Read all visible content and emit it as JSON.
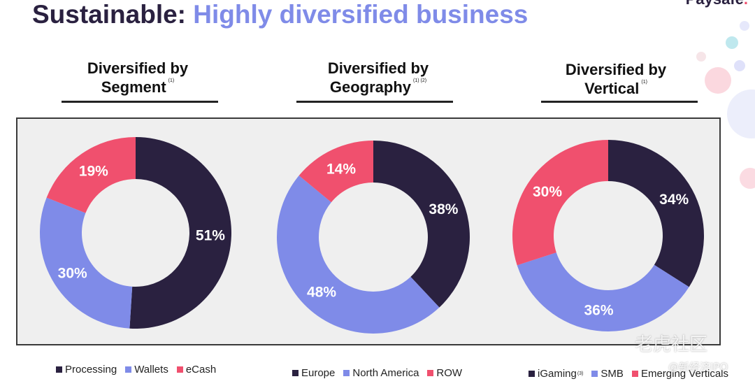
{
  "slide": {
    "title_prefix": "Sustainable:",
    "title_accent": "Highly diversified business",
    "brand": "Paysafe",
    "brand_dot": "."
  },
  "colors": {
    "navy": "#2a2140",
    "periwinkle": "#7f8be8",
    "pink": "#f0506e",
    "panel_bg": "#efefef"
  },
  "headings": [
    {
      "line1": "Diversified by",
      "line2": "Segment",
      "note": "(1)"
    },
    {
      "line1": "Diversified by",
      "line2": "Geography",
      "note": "(1) (2)"
    },
    {
      "line1": "Diversified by",
      "line2": "Vertical",
      "note": "(1)"
    }
  ],
  "chart_data": [
    {
      "type": "pie",
      "title": "Diversified by Segment",
      "categories": [
        "Processing",
        "Wallets",
        "eCash"
      ],
      "values": [
        51,
        30,
        19
      ],
      "labels": [
        "51%",
        "30%",
        "19%"
      ],
      "colors": [
        "#2a2140",
        "#7f8be8",
        "#f0506e"
      ],
      "legend_position": "bottom"
    },
    {
      "type": "pie",
      "title": "Diversified by Geography",
      "categories": [
        "Europe",
        "North America",
        "ROW"
      ],
      "values": [
        38,
        48,
        14
      ],
      "labels": [
        "38%",
        "48%",
        "14%"
      ],
      "colors": [
        "#2a2140",
        "#7f8be8",
        "#f0506e"
      ],
      "legend_position": "bottom"
    },
    {
      "type": "pie",
      "title": "Diversified by Vertical",
      "categories": [
        "iGaming",
        "SMB",
        "Emerging Verticals"
      ],
      "category_notes": [
        "(3)",
        "",
        ""
      ],
      "values": [
        34,
        36,
        30
      ],
      "labels": [
        "34%",
        "36%",
        "30%"
      ],
      "colors": [
        "#2a2140",
        "#7f8be8",
        "#f0506e"
      ],
      "legend_position": "bottom"
    }
  ],
  "watermarks": {
    "site": "老虎社区",
    "handle": "@新经济IPO"
  }
}
